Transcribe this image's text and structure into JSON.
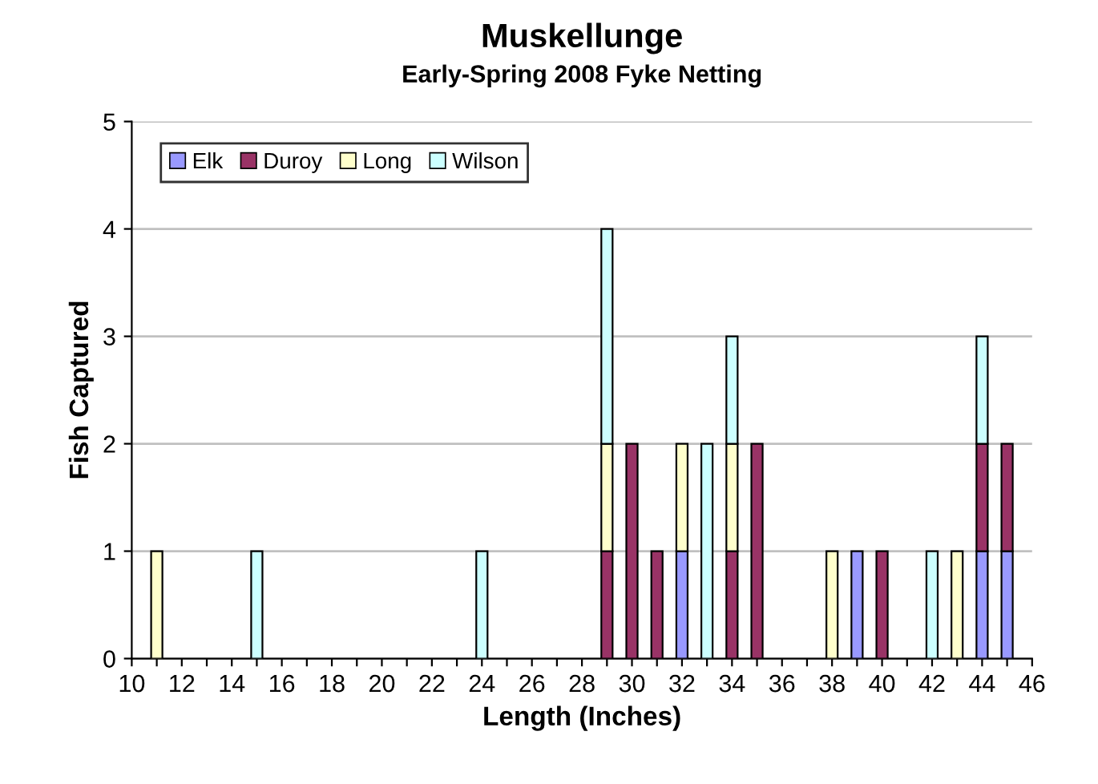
{
  "chart_data": {
    "type": "bar",
    "stacked": true,
    "title": "Muskellunge",
    "subtitle": "Early-Spring 2008 Fyke Netting",
    "xlabel": "Length (Inches)",
    "ylabel": "Fish Captured",
    "x": [
      11,
      15,
      24,
      29,
      30,
      31,
      32,
      33,
      34,
      35,
      38,
      39,
      40,
      42,
      43,
      44,
      45
    ],
    "series": [
      {
        "name": "Elk",
        "color": "#9999ff",
        "values": [
          null,
          null,
          null,
          null,
          null,
          null,
          1,
          null,
          null,
          null,
          null,
          1,
          null,
          null,
          null,
          1,
          1
        ]
      },
      {
        "name": "Duroy",
        "color": "#993366",
        "values": [
          null,
          null,
          null,
          1,
          2,
          1,
          null,
          null,
          1,
          2,
          null,
          null,
          1,
          null,
          null,
          1,
          1
        ]
      },
      {
        "name": "Long",
        "color": "#ffffcc",
        "values": [
          1,
          null,
          null,
          1,
          null,
          null,
          1,
          null,
          1,
          null,
          1,
          null,
          null,
          null,
          1,
          null,
          null
        ]
      },
      {
        "name": "Wilson",
        "color": "#ccffff",
        "values": [
          null,
          1,
          1,
          2,
          null,
          null,
          null,
          2,
          1,
          null,
          null,
          null,
          null,
          1,
          null,
          1,
          null
        ]
      }
    ],
    "xlim": [
      10,
      46
    ],
    "xticks": [
      10,
      {
        "value": 11,
        "label": null
      },
      12,
      {
        "value": 13,
        "label": null
      },
      14,
      {
        "value": 15,
        "label": null
      },
      16,
      {
        "value": 17,
        "label": null
      },
      18,
      {
        "value": 19,
        "label": null
      },
      20,
      {
        "value": 21,
        "label": null
      },
      22,
      {
        "value": 23,
        "label": null
      },
      24,
      {
        "value": 25,
        "label": null
      },
      26,
      {
        "value": 27,
        "label": null
      },
      28,
      {
        "value": 29,
        "label": null
      },
      30,
      {
        "value": 31,
        "label": null
      },
      32,
      {
        "value": 33,
        "label": null
      },
      34,
      {
        "value": 35,
        "label": null
      },
      36,
      {
        "value": 37,
        "label": null
      },
      38,
      {
        "value": 39,
        "label": null
      },
      40,
      {
        "value": 41,
        "label": null
      },
      42,
      {
        "value": 43,
        "label": null
      },
      44,
      {
        "value": 45,
        "label": null
      },
      46
    ],
    "ylim": [
      0,
      5
    ],
    "yticks": [
      0,
      1,
      2,
      3,
      4,
      5
    ],
    "grid": "y",
    "legend": "top left"
  }
}
